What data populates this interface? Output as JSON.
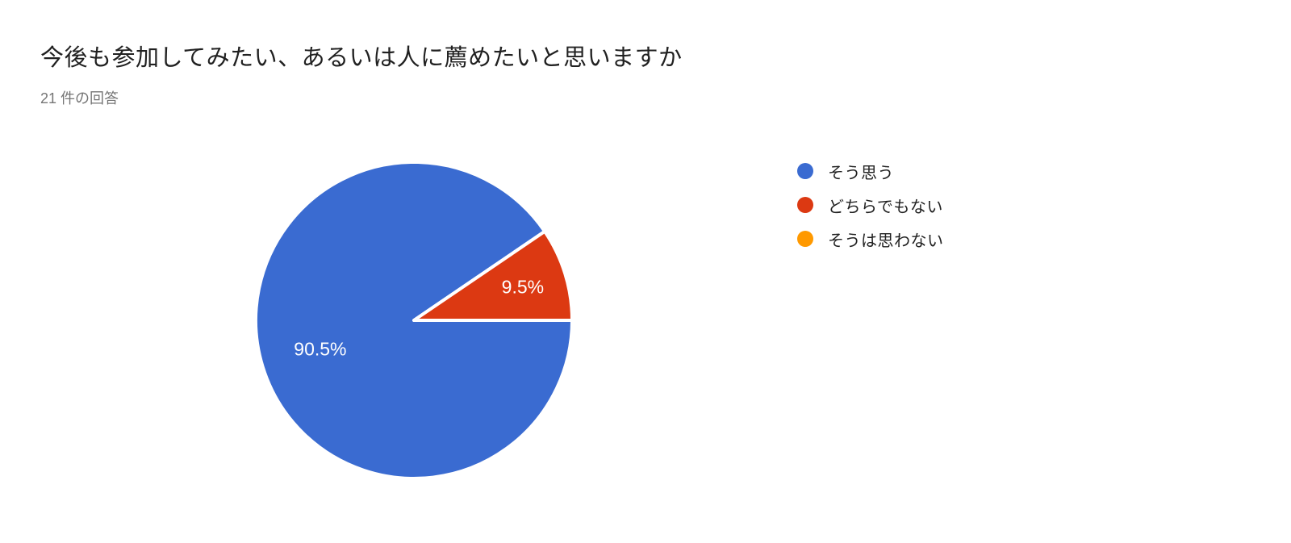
{
  "page": {
    "background_color": "#ffffff"
  },
  "chart_data": {
    "type": "pie",
    "title": "今後も参加してみたい、あるいは人に薦めたいと思いますか",
    "subtitle": "21 件の回答",
    "responses_count": 21,
    "categories": [
      "そう思う",
      "どちらでもない",
      "そうは思わない"
    ],
    "values_percent": [
      90.5,
      9.5,
      0
    ],
    "slice_labels": [
      "90.5%",
      "9.5%",
      ""
    ],
    "colors": [
      "#3a6bd1",
      "#dc3912",
      "#ff9900"
    ],
    "slice_label_color": "#ffffff",
    "slice_separator_color": "#ffffff",
    "start_angle_deg": 0,
    "direction": "clockwise",
    "legend_position": "right",
    "text_colors": {
      "title": "#212121",
      "subtitle": "#757575",
      "legend": "#212121"
    }
  }
}
